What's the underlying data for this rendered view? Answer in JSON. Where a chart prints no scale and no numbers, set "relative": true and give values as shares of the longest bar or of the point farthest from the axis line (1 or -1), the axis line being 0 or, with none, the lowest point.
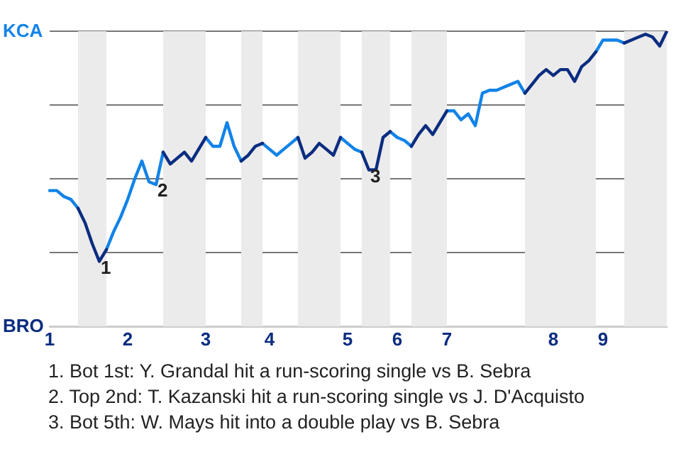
{
  "chart_data": {
    "type": "line",
    "relative": true,
    "categories": [
      "1",
      null,
      null,
      null,
      null,
      null,
      null,
      null,
      null,
      null,
      null,
      "2",
      null,
      null,
      null,
      null,
      null,
      null,
      null,
      null,
      null,
      null,
      "3",
      null,
      null,
      null,
      null,
      null,
      null,
      null,
      null,
      "4",
      null,
      null,
      null,
      null,
      null,
      null,
      null,
      null,
      null,
      null,
      "5",
      null,
      null,
      null,
      null,
      null,
      null,
      "6",
      null,
      null,
      null,
      null,
      null,
      null,
      "7",
      null,
      null,
      null,
      null,
      null,
      null,
      null,
      null,
      null,
      null,
      null,
      null,
      null,
      null,
      "8",
      null,
      null,
      null,
      null,
      null,
      null,
      "9",
      null,
      null,
      null,
      null,
      null,
      null,
      null,
      null,
      null
    ],
    "grid": "y",
    "legend": false,
    "marker": "none",
    "line_style": "solid",
    "series": [
      {
        "color": "#1283e8",
        "values": [
          0.46,
          0.46,
          0.44,
          0.43,
          0.4,
          null,
          null,
          null,
          0.26,
          0.32,
          0.37,
          0.43,
          0.5,
          0.56,
          0.49,
          0.48,
          0.59,
          null,
          null,
          null,
          null,
          null,
          0.64,
          0.61,
          0.61,
          0.69,
          0.61,
          0.56,
          null,
          null,
          0.62,
          0.6,
          0.58,
          0.6,
          0.62,
          0.64,
          null,
          null,
          null,
          null,
          null,
          0.64,
          0.62,
          0.6,
          0.59,
          null,
          null,
          null,
          0.66,
          0.64,
          0.63,
          0.61,
          null,
          null,
          null,
          null,
          0.73,
          0.73,
          0.7,
          0.72,
          0.68,
          0.79,
          0.8,
          0.8,
          0.81,
          0.82,
          0.83,
          0.79,
          null,
          null,
          null,
          null,
          null,
          null,
          null,
          null,
          null,
          0.93,
          0.97,
          0.97,
          0.97,
          0.96,
          null,
          null,
          null,
          null,
          null,
          null
        ]
      },
      {
        "color": "#0b2d80",
        "values": [
          null,
          null,
          null,
          null,
          0.4,
          0.35,
          0.28,
          0.22,
          0.26,
          null,
          null,
          null,
          null,
          null,
          null,
          null,
          0.59,
          0.55,
          0.57,
          0.59,
          0.56,
          0.6,
          0.64,
          null,
          null,
          null,
          null,
          0.56,
          0.58,
          0.61,
          0.62,
          null,
          null,
          null,
          null,
          0.64,
          0.57,
          0.59,
          0.62,
          0.6,
          0.58,
          0.64,
          null,
          null,
          0.59,
          0.53,
          0.53,
          0.64,
          0.66,
          null,
          null,
          0.61,
          0.65,
          0.68,
          0.65,
          0.69,
          0.73,
          null,
          null,
          null,
          null,
          null,
          null,
          null,
          null,
          null,
          null,
          0.79,
          0.82,
          0.85,
          0.87,
          0.85,
          0.87,
          0.87,
          0.83,
          0.88,
          0.9,
          0.93,
          null,
          null,
          null,
          0.96,
          0.97,
          0.98,
          0.99,
          0.98,
          0.95,
          1.0
        ]
      }
    ],
    "annotations": [
      "KCA",
      "BRO",
      {
        "text": "1",
        "y": 0.22
      },
      {
        "text": "2",
        "y": 0.48
      },
      {
        "text": "3",
        "y": 0.53
      },
      "1. Bot 1st: Y. Grandal hit a run-scoring single vs B. Sebra",
      "2. Top 2nd: T. Kazanski hit a run-scoring single vs J. D'Acquisto",
      "3. Bot 5th: W. Mays hit into a double play vs B. Sebra"
    ]
  }
}
